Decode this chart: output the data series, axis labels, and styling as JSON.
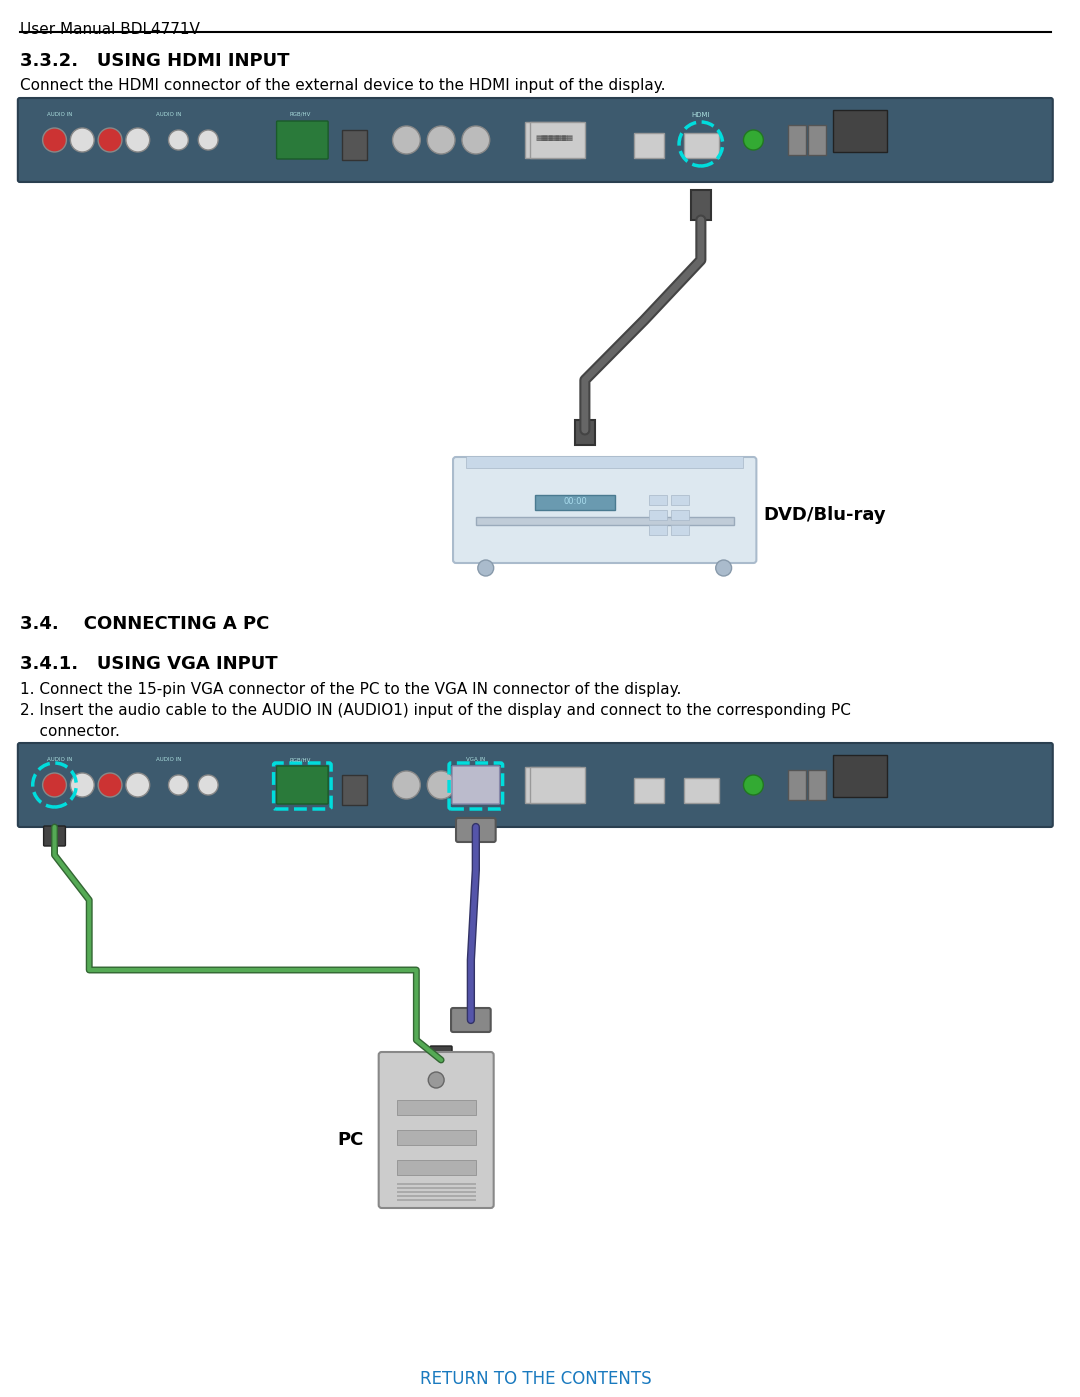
{
  "page_header": "User Manual BDL4771V",
  "section_332_title": "3.3.2.   USING HDMI INPUT",
  "section_332_body": "Connect the HDMI connector of the external device to the HDMI input of the display.",
  "section_34_title": "3.4.    CONNECTING A PC",
  "section_341_title": "3.4.1.   USING VGA INPUT",
  "section_341_body1": "1. Connect the 15-pin VGA connector of the PC to the VGA IN connector of the display.",
  "section_341_body2": "2. Insert the audio cable to the AUDIO IN (AUDIO1) input of the display and connect to the corresponding PC",
  "section_341_body3": "    connector.",
  "dvd_label": "DVD/Blu-ray",
  "pc_label": "PC",
  "footer": "RETURN TO THE CONTENTS",
  "bg_color": "#ffffff",
  "text_color": "#000000",
  "header_line_color": "#000000",
  "footer_color": "#1a7abf",
  "panel_bg": "#3d5a6e",
  "panel_highlight": "#00aaff"
}
